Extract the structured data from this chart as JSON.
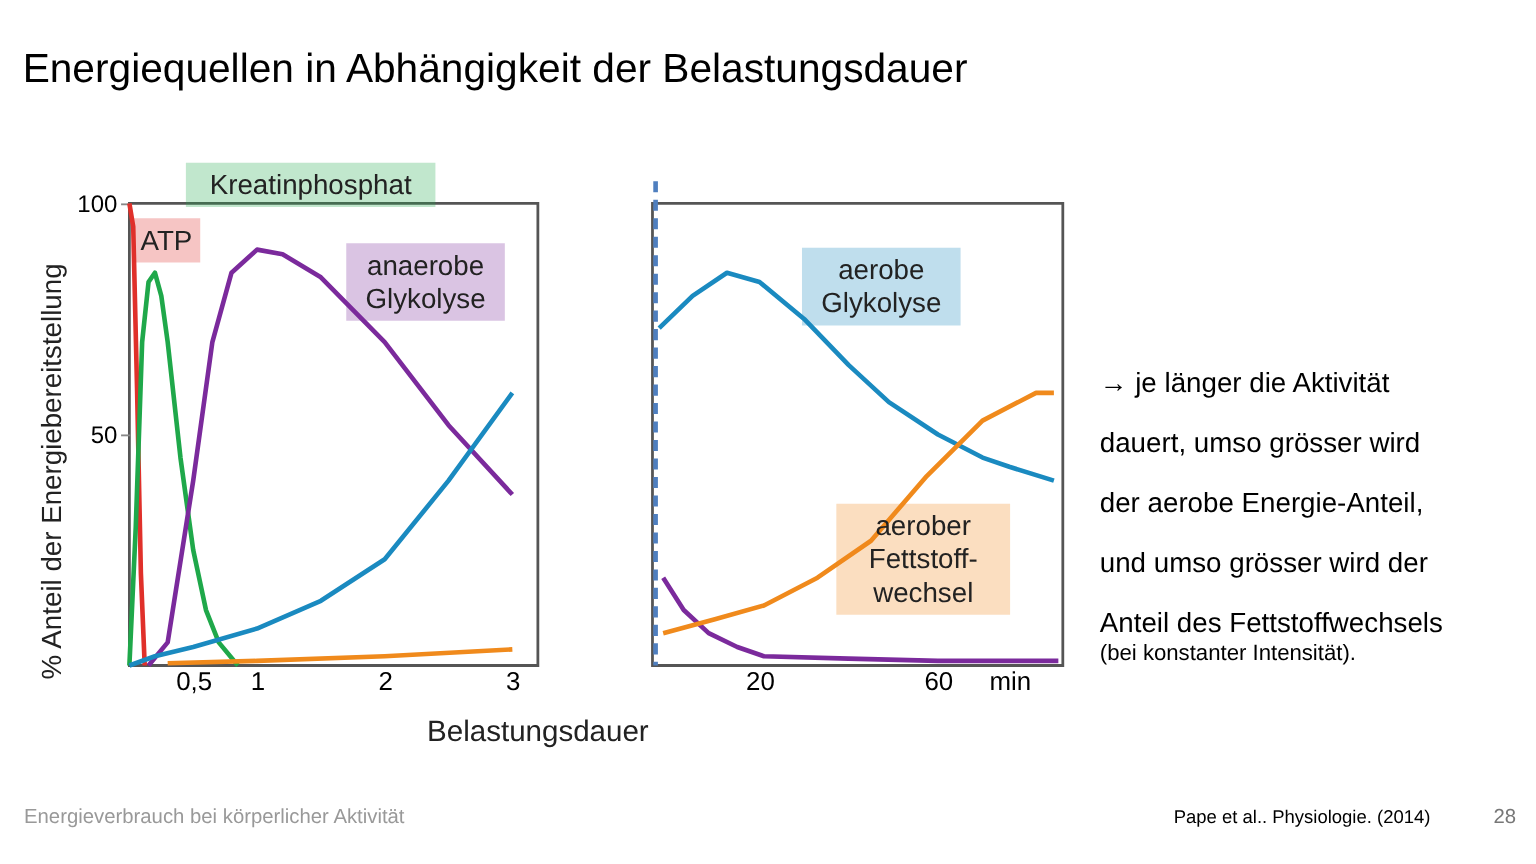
{
  "chart_data": [
    {
      "type": "line",
      "title": "Energiequellen in Abhängigkeit der Belastungsdauer",
      "xlabel": "Belastungsdauer",
      "ylabel": "% Anteil der Energiebereitstellung",
      "xlim": [
        0,
        3.2
      ],
      "xticks": [
        {
          "value": 0.5,
          "label": "0,5"
        },
        1,
        2,
        3
      ],
      "ylim": [
        0,
        100
      ],
      "yticks": [
        50,
        100
      ],
      "series": [
        {
          "name": "ATP",
          "color": "#e0302a",
          "x": [
            0,
            0.03,
            0.06,
            0.09,
            0.12
          ],
          "values": [
            100,
            95,
            60,
            20,
            0
          ]
        },
        {
          "name": "Kreatinphosphat",
          "color": "#1fa84a",
          "x": [
            0,
            0.05,
            0.1,
            0.15,
            0.2,
            0.25,
            0.3,
            0.4,
            0.5,
            0.6,
            0.7,
            0.85
          ],
          "values": [
            0,
            30,
            70,
            83,
            85,
            80,
            70,
            45,
            25,
            12,
            5,
            0
          ]
        },
        {
          "name": "anaerobe\nGlykolyse",
          "color": "#7b2a9c",
          "x": [
            0.15,
            0.3,
            0.5,
            0.65,
            0.8,
            1.0,
            1.2,
            1.5,
            2.0,
            2.5,
            3.0
          ],
          "values": [
            0,
            5,
            40,
            70,
            85,
            90,
            89,
            84,
            70,
            52,
            37
          ]
        },
        {
          "color": "#1a8ac0",
          "x": [
            0,
            0.2,
            0.5,
            1,
            1.5,
            2,
            2.5,
            3
          ],
          "values": [
            0,
            2,
            4,
            8,
            14,
            23,
            40,
            59
          ]
        },
        {
          "color": "#f08a1c",
          "x": [
            0.3,
            1,
            2,
            3
          ],
          "values": [
            0.5,
            1,
            2,
            3.5
          ]
        }
      ],
      "annotations": [
        "Energieverbrauch bei körperlicher Aktivität"
      ]
    },
    {
      "type": "line",
      "xlim": [
        -4,
        88
      ],
      "xticks": [
        20,
        60,
        {
          "value": 76,
          "label": "min"
        }
      ],
      "ylim": [
        0,
        100
      ],
      "yticks": [
        50,
        100
      ],
      "tick_labels": "x",
      "series": [
        {
          "color": "#7b2a9c",
          "x": [
            -1.6,
            3,
            8.6,
            15,
            21,
            40,
            60,
            87
          ],
          "values": [
            19,
            12,
            7,
            4,
            2,
            1.5,
            1,
            1
          ]
        },
        {
          "name": "aerobe\nGlykolyse",
          "color": "#1a8ac0",
          "x": [
            -2.5,
            5,
            12.7,
            20,
            30,
            40,
            49,
            60,
            70,
            76,
            86
          ],
          "values": [
            73,
            80,
            85,
            83,
            75,
            65,
            57,
            50,
            45,
            43,
            40
          ]
        },
        {
          "name": "aerober\nFettstoff-\nwechsel",
          "color": "#f08a1c",
          "x": [
            -1.6,
            10,
            21,
            33,
            45,
            57.5,
            70,
            82,
            86
          ],
          "values": [
            7,
            10,
            13,
            19,
            27,
            41,
            53,
            59,
            59
          ]
        }
      ],
      "ref_lines": [
        {
          "axis": "x",
          "value": -3.3,
          "color": "#4f7fbf",
          "line_style": "dashed"
        }
      ],
      "annotations": [
        "→ je länger die Aktivität\ndauert, umso grösser wird\nder aerobe Energie-Anteil,\nund umso grösser wird der\nAnteil des Fettstoffwechsels",
        "(bei konstanter Intensität).",
        "Pape et al.. Physiologie. (2014)",
        "28"
      ]
    }
  ]
}
